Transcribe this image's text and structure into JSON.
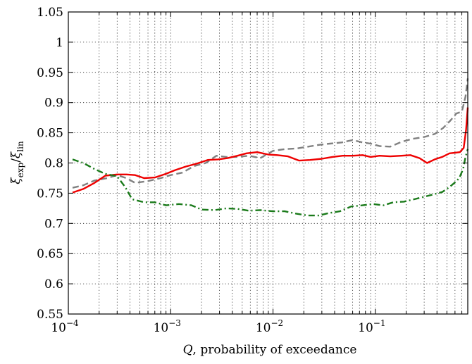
{
  "chart_data": {
    "type": "line",
    "title": "",
    "xscale": "log",
    "xlim": [
      0.0001,
      0.8
    ],
    "ylim": [
      0.55,
      1.05
    ],
    "grid": true,
    "xlabel": {
      "var": "Q",
      "text": ",  probability of exceedance"
    },
    "ylabel": {
      "base1": "ξ",
      "sub1": "exp",
      "base2": "ξ",
      "sub2": "lin"
    },
    "x_ticks": [
      {
        "value": 0.0001,
        "base": "10",
        "exp": "−4"
      },
      {
        "value": 0.001,
        "base": "10",
        "exp": "−3"
      },
      {
        "value": 0.01,
        "base": "10",
        "exp": "−2"
      },
      {
        "value": 0.1,
        "base": "10",
        "exp": "−1"
      }
    ],
    "y_ticks": [
      {
        "value": 0.55,
        "label": "0.55"
      },
      {
        "value": 0.6,
        "label": "0.6"
      },
      {
        "value": 0.65,
        "label": "0.65"
      },
      {
        "value": 0.7,
        "label": "0.7"
      },
      {
        "value": 0.75,
        "label": "0.75"
      },
      {
        "value": 0.8,
        "label": "0.8"
      },
      {
        "value": 0.85,
        "label": "0.85"
      },
      {
        "value": 0.9,
        "label": "0.9"
      },
      {
        "value": 0.95,
        "label": "0.95"
      },
      {
        "value": 1.0,
        "label": "1"
      },
      {
        "value": 1.05,
        "label": "1.05"
      }
    ],
    "series": [
      {
        "style": "dashed",
        "color": "#808080",
        "x": [
          0.00011,
          0.00014,
          0.00018,
          0.00024,
          0.0003,
          0.00037,
          0.00045,
          0.0006,
          0.0008,
          0.001,
          0.0013,
          0.0017,
          0.0022,
          0.0028,
          0.0035,
          0.0045,
          0.0058,
          0.0075,
          0.01,
          0.013,
          0.017,
          0.022,
          0.028,
          0.036,
          0.047,
          0.06,
          0.075,
          0.09,
          0.11,
          0.14,
          0.18,
          0.23,
          0.3,
          0.38,
          0.46,
          0.54,
          0.62,
          0.7,
          0.76,
          0.8
        ],
        "y": [
          0.759,
          0.763,
          0.771,
          0.775,
          0.78,
          0.775,
          0.767,
          0.77,
          0.775,
          0.78,
          0.784,
          0.795,
          0.8,
          0.812,
          0.81,
          0.81,
          0.812,
          0.808,
          0.82,
          0.823,
          0.824,
          0.827,
          0.83,
          0.832,
          0.834,
          0.838,
          0.834,
          0.832,
          0.828,
          0.827,
          0.835,
          0.84,
          0.843,
          0.848,
          0.858,
          0.87,
          0.882,
          0.885,
          0.91,
          0.94
        ]
      },
      {
        "style": "solid",
        "color": "#ee0000",
        "x": [
          0.00011,
          0.00014,
          0.00018,
          0.00023,
          0.0003,
          0.00037,
          0.00045,
          0.00055,
          0.0007,
          0.0009,
          0.0011,
          0.0014,
          0.0018,
          0.0023,
          0.0029,
          0.0036,
          0.0045,
          0.0055,
          0.007,
          0.009,
          0.011,
          0.014,
          0.018,
          0.023,
          0.03,
          0.038,
          0.048,
          0.06,
          0.075,
          0.09,
          0.11,
          0.14,
          0.18,
          0.22,
          0.27,
          0.32,
          0.38,
          0.45,
          0.53,
          0.6,
          0.67,
          0.73,
          0.77,
          0.8
        ],
        "y": [
          0.751,
          0.757,
          0.767,
          0.779,
          0.781,
          0.781,
          0.78,
          0.775,
          0.776,
          0.782,
          0.788,
          0.794,
          0.799,
          0.805,
          0.806,
          0.808,
          0.812,
          0.816,
          0.818,
          0.814,
          0.813,
          0.811,
          0.804,
          0.805,
          0.807,
          0.81,
          0.812,
          0.812,
          0.813,
          0.81,
          0.812,
          0.811,
          0.812,
          0.813,
          0.808,
          0.8,
          0.806,
          0.81,
          0.816,
          0.817,
          0.818,
          0.825,
          0.855,
          0.892
        ]
      },
      {
        "style": "dashdot",
        "color": "#1a7a1a",
        "x": [
          0.00011,
          0.00014,
          0.00018,
          0.00023,
          0.0003,
          0.00036,
          0.00042,
          0.00055,
          0.0007,
          0.0009,
          0.0012,
          0.0016,
          0.002,
          0.0027,
          0.0035,
          0.0045,
          0.0058,
          0.0075,
          0.01,
          0.013,
          0.017,
          0.022,
          0.028,
          0.035,
          0.045,
          0.058,
          0.075,
          0.095,
          0.12,
          0.15,
          0.19,
          0.24,
          0.3,
          0.37,
          0.45,
          0.53,
          0.6,
          0.66,
          0.72,
          0.76,
          0.8
        ],
        "y": [
          0.806,
          0.8,
          0.79,
          0.782,
          0.778,
          0.76,
          0.74,
          0.735,
          0.735,
          0.73,
          0.732,
          0.73,
          0.723,
          0.722,
          0.725,
          0.724,
          0.721,
          0.722,
          0.72,
          0.72,
          0.716,
          0.713,
          0.713,
          0.717,
          0.72,
          0.728,
          0.73,
          0.732,
          0.73,
          0.735,
          0.736,
          0.74,
          0.744,
          0.748,
          0.752,
          0.76,
          0.768,
          0.775,
          0.79,
          0.81,
          0.823
        ]
      }
    ]
  }
}
